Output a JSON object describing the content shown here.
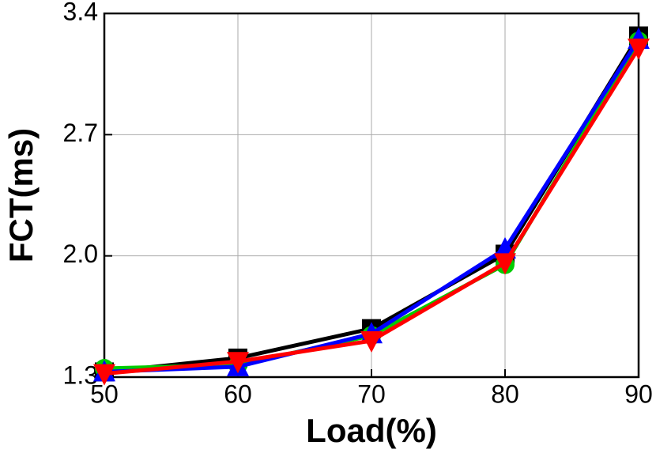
{
  "chart_data": {
    "type": "line",
    "xlabel": "Load(%)",
    "ylabel": "FCT(ms)",
    "x": [
      50,
      60,
      70,
      80,
      90
    ],
    "series": [
      {
        "color": "#000000",
        "marker": "square",
        "values": [
          1.33,
          1.41,
          1.58,
          2.01,
          3.27
        ]
      },
      {
        "color": "#00cc00",
        "marker": "circle",
        "values": [
          1.35,
          1.37,
          1.54,
          1.95,
          3.24
        ]
      },
      {
        "color": "#0000ff",
        "marker": "triangle-up",
        "values": [
          1.33,
          1.36,
          1.55,
          2.04,
          3.25
        ]
      },
      {
        "color": "#ff0000",
        "marker": "triangle-down",
        "values": [
          1.32,
          1.39,
          1.51,
          1.96,
          3.2
        ]
      }
    ],
    "xlim": [
      50,
      90
    ],
    "xticks": [
      50,
      60,
      70,
      80,
      90
    ],
    "ylim": [
      1.3,
      3.4
    ],
    "yticks": [
      1.3,
      {
        "value": 2,
        "label": "2.0"
      },
      2.7,
      3.4
    ],
    "grid": true
  }
}
